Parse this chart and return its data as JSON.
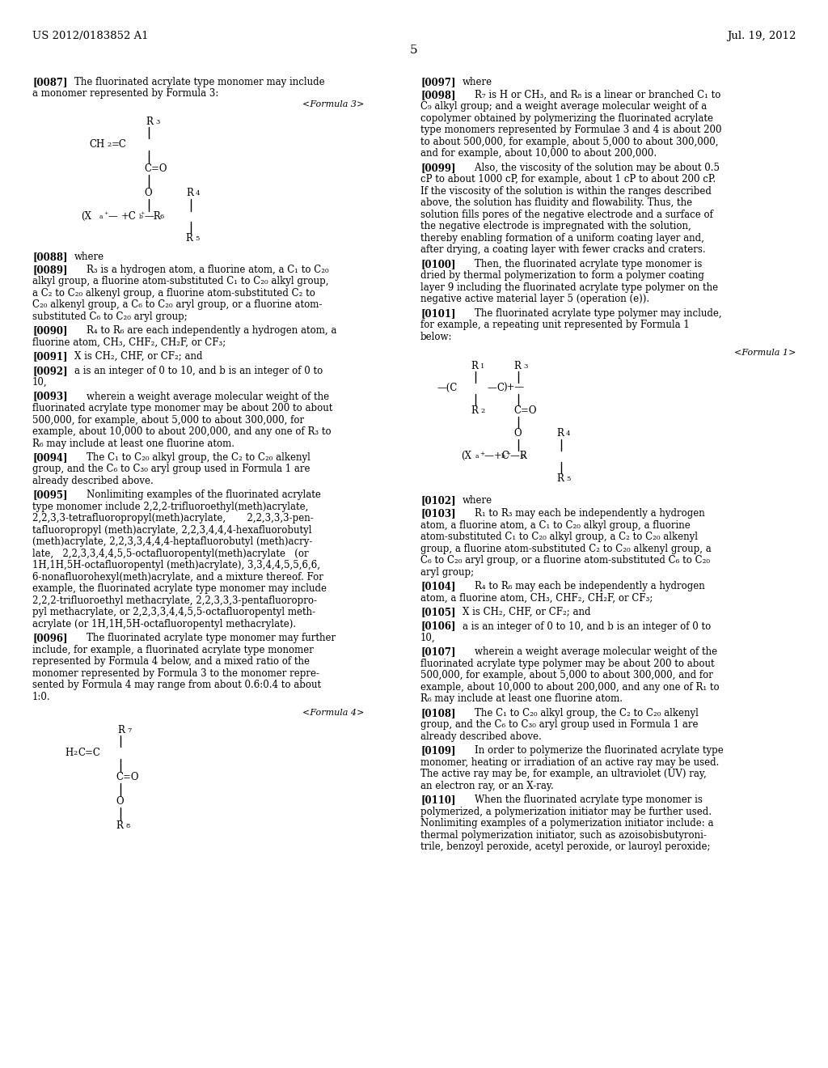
{
  "page_number": "5",
  "header_left": "US 2012/0183852 A1",
  "header_right": "Jul. 19, 2012",
  "background_color": "#ffffff",
  "text_color": "#000000"
}
